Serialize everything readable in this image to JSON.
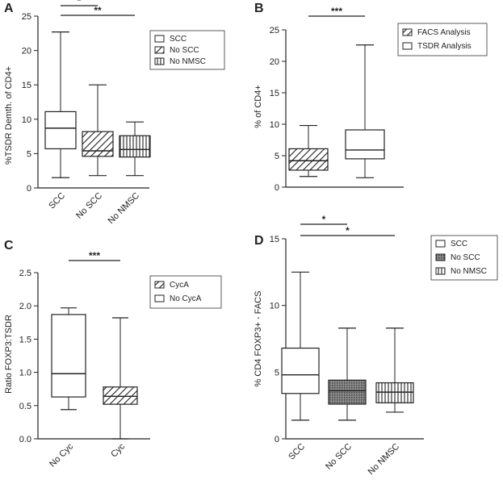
{
  "chart_data": [
    {
      "panel": "A",
      "type": "boxplot",
      "ylabel": "%TSDR Demth. of CD4+",
      "ylim": [
        0,
        25
      ],
      "yticks": [
        0,
        5,
        10,
        15,
        20,
        25
      ],
      "categories": [
        "SCC",
        "No SCC",
        "No NMSC"
      ],
      "boxes": [
        {
          "min": 1.5,
          "q1": 5.7,
          "median": 8.7,
          "q3": 11.1,
          "max": 22.7,
          "pattern": "none"
        },
        {
          "min": 1.8,
          "q1": 4.6,
          "median": 5.4,
          "q3": 8.2,
          "max": 15.0,
          "pattern": "diag"
        },
        {
          "min": 1.8,
          "q1": 4.5,
          "median": 5.6,
          "q3": 7.6,
          "max": 9.6,
          "pattern": "vert"
        }
      ],
      "legend": [
        "SCC",
        "No SCC",
        "No NMSC"
      ],
      "significance": [
        {
          "from": 0,
          "to": 1,
          "label": "*"
        },
        {
          "from": 0,
          "to": 2,
          "label": "**"
        }
      ]
    },
    {
      "panel": "B",
      "type": "boxplot",
      "ylabel": "% of CD4+",
      "ylim": [
        0,
        25
      ],
      "yticks": [
        0,
        5,
        10,
        15,
        20,
        25
      ],
      "categories": [
        "",
        ""
      ],
      "boxes": [
        {
          "min": 1.7,
          "q1": 2.7,
          "median": 4.2,
          "q3": 6.1,
          "max": 9.8,
          "pattern": "diag"
        },
        {
          "min": 1.5,
          "q1": 4.5,
          "median": 5.9,
          "q3": 9.1,
          "max": 22.6,
          "pattern": "none"
        }
      ],
      "legend": [
        "FACS Analysis",
        "TSDR Analysis"
      ],
      "significance": [
        {
          "from": 0,
          "to": 1,
          "label": "***"
        }
      ]
    },
    {
      "panel": "C",
      "type": "boxplot",
      "ylabel": "Ratio FOXP3:TSDR",
      "ylim": [
        0,
        2.5
      ],
      "yticks": [
        0.0,
        0.5,
        1.0,
        1.5,
        2.0,
        2.5
      ],
      "ytick_labels": [
        "0.0",
        "0.5",
        "1.0",
        "1.5",
        "2.0",
        "2.5"
      ],
      "categories": [
        "No Cyc",
        "Cyc"
      ],
      "boxes": [
        {
          "min": 0.44,
          "q1": 0.63,
          "median": 0.98,
          "q3": 1.87,
          "max": 1.97,
          "pattern": "none"
        },
        {
          "min": 0.0,
          "q1": 0.52,
          "median": 0.64,
          "q3": 0.78,
          "max": 1.82,
          "pattern": "diag"
        }
      ],
      "legend": [
        "CycA",
        "No CycA"
      ],
      "significance": [
        {
          "from": 0,
          "to": 1,
          "label": "***"
        }
      ]
    },
    {
      "panel": "D",
      "type": "boxplot",
      "ylabel": "% CD4 FOXP3+ - FACS",
      "ylim": [
        0,
        15
      ],
      "yticks": [
        0,
        5,
        10,
        15
      ],
      "categories": [
        "SCC",
        "No SCC",
        "No NMSC"
      ],
      "boxes": [
        {
          "min": 1.4,
          "q1": 3.4,
          "median": 4.8,
          "q3": 6.8,
          "max": 12.5,
          "pattern": "none"
        },
        {
          "min": 1.4,
          "q1": 2.6,
          "median": 3.6,
          "q3": 4.4,
          "max": 8.3,
          "pattern": "dots"
        },
        {
          "min": 2.0,
          "q1": 2.7,
          "median": 3.5,
          "q3": 4.2,
          "max": 8.3,
          "pattern": "vert"
        }
      ],
      "legend": [
        "SCC",
        "No SCC",
        "No NMSC"
      ],
      "significance": [
        {
          "from": 0,
          "to": 1,
          "label": "*"
        },
        {
          "from": 0,
          "to": 2,
          "label": "*"
        }
      ]
    }
  ]
}
